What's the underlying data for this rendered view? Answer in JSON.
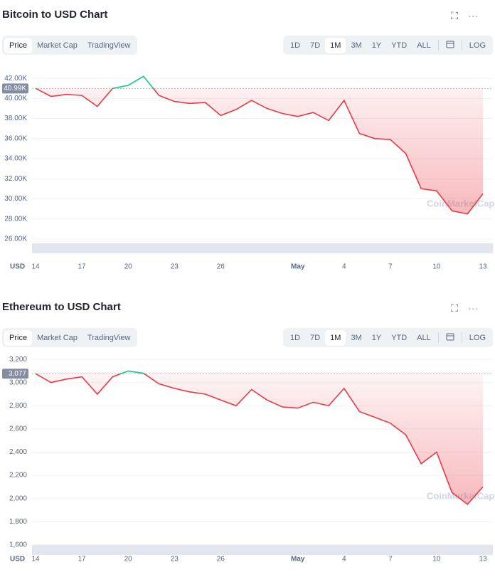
{
  "chart_data": [
    {
      "type": "line",
      "title": "Bitcoin to USD Chart",
      "tabs": [
        "Price",
        "Market Cap",
        "TradingView"
      ],
      "ranges": [
        "1D",
        "7D",
        "1M",
        "3M",
        "1Y",
        "YTD",
        "ALL"
      ],
      "log_label": "LOG",
      "currency": "USD",
      "watermark": "CoinMarketCap",
      "categories": [
        "14",
        null,
        null,
        "17",
        null,
        null,
        "20",
        null,
        null,
        "23",
        null,
        null,
        "26",
        null,
        null,
        null,
        null,
        "May",
        null,
        null,
        "4",
        null,
        null,
        "7",
        null,
        null,
        "10",
        null,
        null,
        "13"
      ],
      "values": [
        41000,
        40200,
        40400,
        40300,
        39200,
        41000,
        41300,
        42200,
        40300,
        39700,
        39500,
        39600,
        38300,
        38900,
        39800,
        39000,
        38500,
        38200,
        38600,
        37800,
        39800,
        36500,
        36000,
        35900,
        34500,
        31000,
        30800,
        28800,
        28500,
        30500
      ],
      "reference": {
        "value": 40990,
        "label": "40.99K"
      },
      "up_color": "#16c784",
      "down_color": "#ea3943",
      "ylim": [
        25000,
        43000
      ],
      "yticks": [
        {
          "value": 26000,
          "label": "26.00K"
        },
        {
          "value": 28000,
          "label": "28.00K"
        },
        {
          "value": 30000,
          "label": "30.00K"
        },
        {
          "value": 32000,
          "label": "32.00K"
        },
        {
          "value": 34000,
          "label": "34.00K"
        },
        {
          "value": 36000,
          "label": "36.00K"
        },
        {
          "value": 38000,
          "label": "38.00K"
        },
        {
          "value": 40000,
          "label": "40.00K"
        },
        {
          "value": 42000,
          "label": "42.00K"
        }
      ],
      "grid": true
    },
    {
      "type": "line",
      "title": "Ethereum to USD Chart",
      "tabs": [
        "Price",
        "Market Cap",
        "TradingView"
      ],
      "ranges": [
        "1D",
        "7D",
        "1M",
        "3M",
        "1Y",
        "YTD",
        "ALL"
      ],
      "log_label": "LOG",
      "currency": "USD",
      "watermark": "CoinMarketCap",
      "categories": [
        "14",
        null,
        null,
        "17",
        null,
        null,
        "20",
        null,
        null,
        "23",
        null,
        null,
        "26",
        null,
        null,
        null,
        null,
        "May",
        null,
        null,
        "4",
        null,
        null,
        "7",
        null,
        null,
        "10",
        null,
        null,
        "13"
      ],
      "values": [
        3077,
        3000,
        3030,
        3050,
        2900,
        3050,
        3100,
        3080,
        2990,
        2950,
        2920,
        2900,
        2850,
        2800,
        2940,
        2850,
        2790,
        2780,
        2830,
        2800,
        2950,
        2750,
        2700,
        2650,
        2550,
        2300,
        2400,
        2050,
        1950,
        2100
      ],
      "reference": {
        "value": 3077,
        "label": "3,077"
      },
      "up_color": "#16c784",
      "down_color": "#ea3943",
      "ylim": [
        1550,
        3250
      ],
      "yticks": [
        {
          "value": 1600,
          "label": "1,600"
        },
        {
          "value": 1800,
          "label": "1,800"
        },
        {
          "value": 2000,
          "label": "2,000"
        },
        {
          "value": 2200,
          "label": "2,200"
        },
        {
          "value": 2400,
          "label": "2,400"
        },
        {
          "value": 2600,
          "label": "2,600"
        },
        {
          "value": 2800,
          "label": "2,800"
        },
        {
          "value": 3000,
          "label": "3,000"
        },
        {
          "value": 3200,
          "label": "3,200"
        }
      ],
      "grid": true
    }
  ]
}
